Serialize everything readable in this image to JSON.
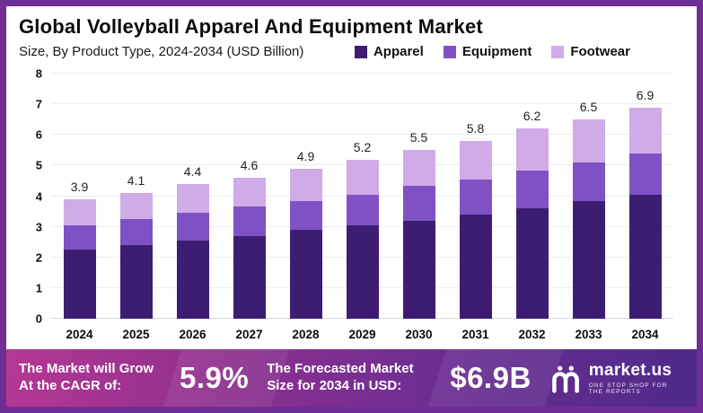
{
  "header": {
    "title": "Global Volleyball Apparel And Equipment Market",
    "subtitle": "Size, By Product Type, 2024-2034 (USD Billion)"
  },
  "legend": [
    {
      "label": "Apparel",
      "color": "#3d1d72"
    },
    {
      "label": "Equipment",
      "color": "#7e52c5"
    },
    {
      "label": "Footwear",
      "color": "#cfabe8"
    }
  ],
  "chart_data": {
    "type": "bar",
    "stacked": true,
    "title": "Global Volleyball Apparel And Equipment Market",
    "subtitle": "Size, By Product Type, 2024-2034 (USD Billion)",
    "categories": [
      "2024",
      "2025",
      "2026",
      "2027",
      "2028",
      "2029",
      "2030",
      "2031",
      "2032",
      "2033",
      "2034"
    ],
    "series": [
      {
        "name": "Apparel",
        "color": "#3d1d72",
        "values": [
          2.25,
          2.4,
          2.55,
          2.7,
          2.9,
          3.05,
          3.2,
          3.4,
          3.6,
          3.85,
          4.05
        ]
      },
      {
        "name": "Equipment",
        "color": "#7e52c5",
        "values": [
          0.8,
          0.85,
          0.9,
          0.95,
          0.95,
          1.0,
          1.15,
          1.15,
          1.25,
          1.25,
          1.35
        ]
      },
      {
        "name": "Footwear",
        "color": "#cfabe8",
        "values": [
          0.85,
          0.85,
          0.95,
          0.95,
          1.05,
          1.15,
          1.15,
          1.25,
          1.35,
          1.4,
          1.5
        ]
      }
    ],
    "totals": [
      3.9,
      4.1,
      4.4,
      4.6,
      4.9,
      5.2,
      5.5,
      5.8,
      6.2,
      6.5,
      6.9
    ],
    "xlabel": "",
    "ylabel": "",
    "ylim": [
      0,
      8
    ],
    "yticks": [
      0,
      1,
      2,
      3,
      4,
      5,
      6,
      7,
      8
    ],
    "grid": true,
    "legend_position": "top-right"
  },
  "footer": {
    "cagr_label": "The Market will Grow At the CAGR of:",
    "cagr_value": "5.9%",
    "forecast_label": "The Forecasted Market Size for 2034 in USD:",
    "forecast_value": "$6.9B",
    "brand": "market.us",
    "brand_tagline": "One Stop Shop For The Reports"
  }
}
